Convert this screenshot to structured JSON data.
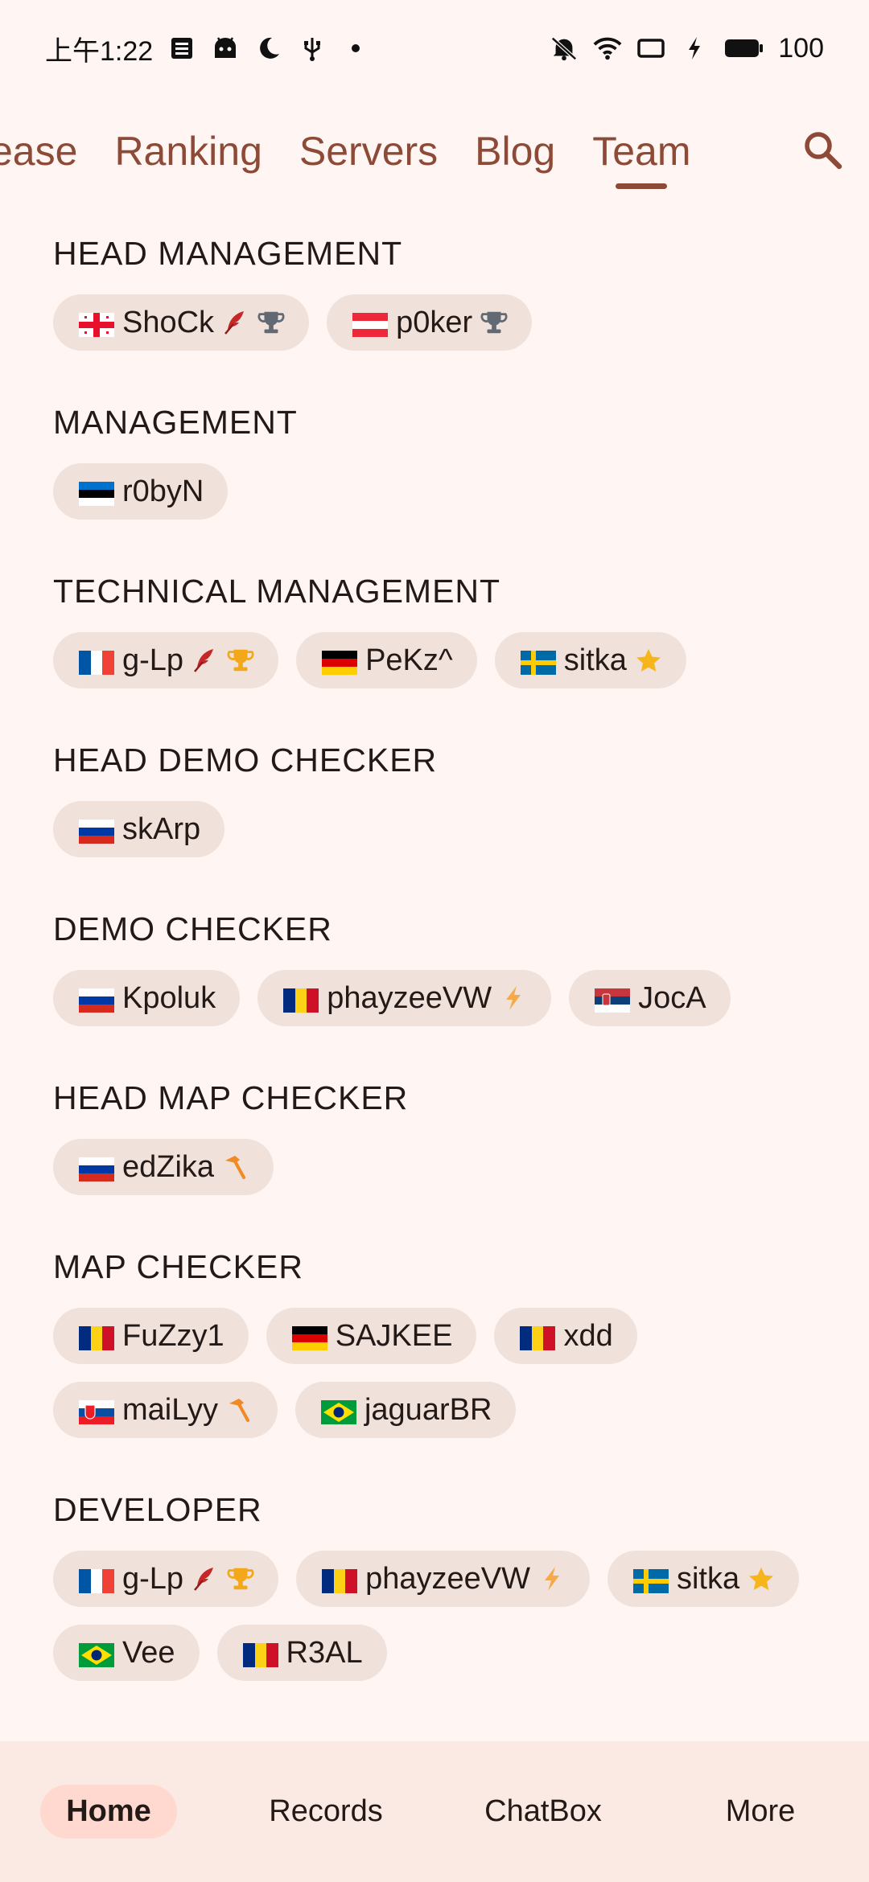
{
  "status_bar": {
    "time": "上午1:22",
    "battery": "100",
    "left_icons": [
      "notes-icon",
      "android-icon",
      "moon-icon",
      "usb-icon",
      "dot-icon"
    ],
    "right_icons": [
      "mute-icon",
      "wifi-icon",
      "screen-icon",
      "charging-icon",
      "battery-icon"
    ]
  },
  "top_tabs": {
    "items": [
      {
        "label": "ease",
        "active": false
      },
      {
        "label": "Ranking",
        "active": false
      },
      {
        "label": "Servers",
        "active": false
      },
      {
        "label": "Blog",
        "active": false
      },
      {
        "label": "Team",
        "active": true
      }
    ],
    "search_icon": "search-icon"
  },
  "sections": [
    {
      "title": "HEAD MANAGEMENT",
      "members": [
        {
          "name": "ShoCk",
          "flag": "ge",
          "badges": [
            "feather",
            "trophy-gray"
          ]
        },
        {
          "name": "p0ker",
          "flag": "at",
          "badges": [
            "trophy-gray"
          ]
        }
      ]
    },
    {
      "title": "MANAGEMENT",
      "members": [
        {
          "name": "r0byN",
          "flag": "ee",
          "badges": []
        }
      ]
    },
    {
      "title": "TECHNICAL MANAGEMENT",
      "members": [
        {
          "name": "g-Lp",
          "flag": "fr",
          "badges": [
            "feather",
            "trophy-gold"
          ]
        },
        {
          "name": "PeKz^",
          "flag": "de",
          "badges": []
        },
        {
          "name": "sitka",
          "flag": "se",
          "badges": [
            "star"
          ]
        }
      ]
    },
    {
      "title": "HEAD DEMO CHECKER",
      "members": [
        {
          "name": "skArp",
          "flag": "ru",
          "badges": []
        }
      ]
    },
    {
      "title": "DEMO CHECKER",
      "members": [
        {
          "name": "Kpoluk",
          "flag": "ru",
          "badges": []
        },
        {
          "name": "phayzeeVW",
          "flag": "ro",
          "badges": [
            "bolt"
          ]
        },
        {
          "name": "JocA",
          "flag": "rs",
          "badges": []
        }
      ]
    },
    {
      "title": "HEAD MAP CHECKER",
      "members": [
        {
          "name": "edZika",
          "flag": "ru",
          "badges": [
            "hammer"
          ]
        }
      ]
    },
    {
      "title": "MAP CHECKER",
      "members": [
        {
          "name": "FuZzy1",
          "flag": "ro",
          "badges": []
        },
        {
          "name": "SAJKEE",
          "flag": "de",
          "badges": []
        },
        {
          "name": "xdd",
          "flag": "ro",
          "badges": []
        },
        {
          "name": "maiLyy",
          "flag": "sk",
          "badges": [
            "hammer"
          ]
        },
        {
          "name": "jaguarBR",
          "flag": "br",
          "badges": []
        }
      ]
    },
    {
      "title": "DEVELOPER",
      "members": [
        {
          "name": "g-Lp",
          "flag": "fr",
          "badges": [
            "feather",
            "trophy-gold"
          ]
        },
        {
          "name": "phayzeeVW",
          "flag": "ro",
          "badges": [
            "bolt"
          ]
        },
        {
          "name": "sitka",
          "flag": "se",
          "badges": [
            "star"
          ]
        },
        {
          "name": "Vee",
          "flag": "br",
          "badges": []
        },
        {
          "name": "R3AL",
          "flag": "ro",
          "badges": []
        }
      ]
    }
  ],
  "bottom_nav": {
    "items": [
      {
        "label": "Home",
        "active": true
      },
      {
        "label": "Records",
        "active": false
      },
      {
        "label": "ChatBox",
        "active": false
      },
      {
        "label": "More",
        "active": false
      }
    ]
  },
  "colors": {
    "background": "#fff6f4",
    "accent": "#8c4a37",
    "chip": "#f1e1db",
    "nav_background": "#fbe9e3",
    "nav_active": "#ffd9cf"
  }
}
